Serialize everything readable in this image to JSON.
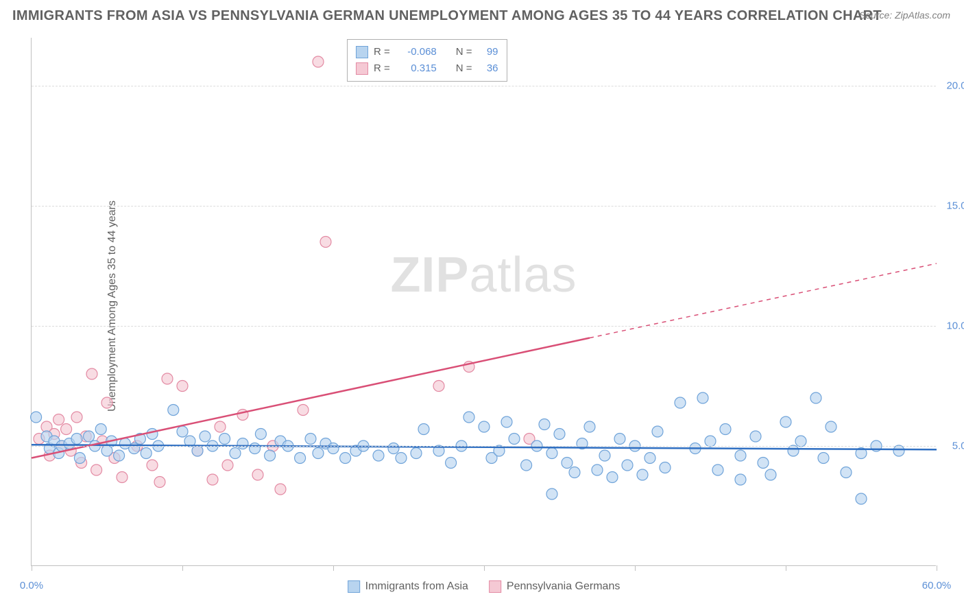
{
  "title": "IMMIGRANTS FROM ASIA VS PENNSYLVANIA GERMAN UNEMPLOYMENT AMONG AGES 35 TO 44 YEARS CORRELATION CHART",
  "source": "Source: ZipAtlas.com",
  "y_axis_title": "Unemployment Among Ages 35 to 44 years",
  "watermark_bold": "ZIP",
  "watermark_rest": "atlas",
  "chart": {
    "type": "scatter",
    "xlim": [
      0,
      60
    ],
    "ylim": [
      0,
      22
    ],
    "x_ticks": [
      0,
      10,
      20,
      30,
      40,
      50,
      60
    ],
    "x_tick_labels_shown": {
      "0": "0.0%",
      "60": "60.0%"
    },
    "y_ticks": [
      5,
      10,
      15,
      20
    ],
    "y_tick_labels": [
      "5.0%",
      "10.0%",
      "15.0%",
      "20.0%"
    ],
    "background_color": "#ffffff",
    "grid_color": "#dcdcdc",
    "marker_radius": 8,
    "marker_stroke_width": 1.2,
    "line_width": 2.5,
    "series": [
      {
        "name": "Immigrants from Asia",
        "fill_color": "#b8d4ef",
        "stroke_color": "#6fa3d9",
        "line_color": "#2f6fc2",
        "R": "-0.068",
        "N": "99",
        "trend_solid": {
          "x1": 0,
          "y1": 5.05,
          "x2": 60,
          "y2": 4.85
        },
        "points": [
          [
            0.3,
            6.2
          ],
          [
            1.0,
            5.4
          ],
          [
            1.2,
            4.9
          ],
          [
            1.5,
            5.2
          ],
          [
            1.8,
            4.7
          ],
          [
            2.0,
            5.0
          ],
          [
            2.5,
            5.1
          ],
          [
            3.0,
            5.3
          ],
          [
            3.2,
            4.5
          ],
          [
            3.8,
            5.4
          ],
          [
            4.2,
            5.0
          ],
          [
            4.6,
            5.7
          ],
          [
            5.0,
            4.8
          ],
          [
            5.3,
            5.2
          ],
          [
            5.8,
            4.6
          ],
          [
            6.2,
            5.1
          ],
          [
            6.8,
            4.9
          ],
          [
            7.2,
            5.3
          ],
          [
            7.6,
            4.7
          ],
          [
            8.0,
            5.5
          ],
          [
            8.4,
            5.0
          ],
          [
            9.4,
            6.5
          ],
          [
            10.0,
            5.6
          ],
          [
            10.5,
            5.2
          ],
          [
            11.0,
            4.8
          ],
          [
            11.5,
            5.4
          ],
          [
            12.0,
            5.0
          ],
          [
            12.8,
            5.3
          ],
          [
            13.5,
            4.7
          ],
          [
            14.0,
            5.1
          ],
          [
            14.8,
            4.9
          ],
          [
            15.2,
            5.5
          ],
          [
            15.8,
            4.6
          ],
          [
            16.5,
            5.2
          ],
          [
            17.0,
            5.0
          ],
          [
            17.8,
            4.5
          ],
          [
            18.5,
            5.3
          ],
          [
            19.0,
            4.7
          ],
          [
            19.5,
            5.1
          ],
          [
            20.0,
            4.9
          ],
          [
            20.8,
            4.5
          ],
          [
            21.5,
            4.8
          ],
          [
            22.0,
            5.0
          ],
          [
            23.0,
            4.6
          ],
          [
            24.0,
            4.9
          ],
          [
            24.5,
            4.5
          ],
          [
            25.5,
            4.7
          ],
          [
            26.0,
            5.7
          ],
          [
            27.0,
            4.8
          ],
          [
            27.8,
            4.3
          ],
          [
            28.5,
            5.0
          ],
          [
            29.0,
            6.2
          ],
          [
            30.0,
            5.8
          ],
          [
            30.5,
            4.5
          ],
          [
            31.0,
            4.8
          ],
          [
            31.5,
            6.0
          ],
          [
            32.0,
            5.3
          ],
          [
            32.8,
            4.2
          ],
          [
            33.5,
            5.0
          ],
          [
            34.0,
            5.9
          ],
          [
            34.5,
            4.7
          ],
          [
            34.5,
            3.0
          ],
          [
            35.0,
            5.5
          ],
          [
            35.5,
            4.3
          ],
          [
            36.0,
            3.9
          ],
          [
            36.5,
            5.1
          ],
          [
            37.0,
            5.8
          ],
          [
            37.5,
            4.0
          ],
          [
            38.0,
            4.6
          ],
          [
            38.5,
            3.7
          ],
          [
            39.0,
            5.3
          ],
          [
            39.5,
            4.2
          ],
          [
            40.0,
            5.0
          ],
          [
            40.5,
            3.8
          ],
          [
            41.0,
            4.5
          ],
          [
            41.5,
            5.6
          ],
          [
            42.0,
            4.1
          ],
          [
            43.0,
            6.8
          ],
          [
            44.0,
            4.9
          ],
          [
            44.5,
            7.0
          ],
          [
            45.0,
            5.2
          ],
          [
            45.5,
            4.0
          ],
          [
            46.0,
            5.7
          ],
          [
            47.0,
            4.6
          ],
          [
            47.0,
            3.6
          ],
          [
            48.0,
            5.4
          ],
          [
            48.5,
            4.3
          ],
          [
            49.0,
            3.8
          ],
          [
            50.0,
            6.0
          ],
          [
            50.5,
            4.8
          ],
          [
            51.0,
            5.2
          ],
          [
            52.0,
            7.0
          ],
          [
            52.5,
            4.5
          ],
          [
            53.0,
            5.8
          ],
          [
            54.0,
            3.9
          ],
          [
            55.0,
            4.7
          ],
          [
            55.0,
            2.8
          ],
          [
            56.0,
            5.0
          ],
          [
            57.5,
            4.8
          ]
        ]
      },
      {
        "name": "Pennsylvania Germans",
        "fill_color": "#f5c9d4",
        "stroke_color": "#e38aa3",
        "line_color": "#d94f76",
        "R": "0.315",
        "N": "36",
        "trend_solid": {
          "x1": 0,
          "y1": 4.5,
          "x2": 37,
          "y2": 9.5
        },
        "trend_dashed": {
          "x1": 37,
          "y1": 9.5,
          "x2": 60,
          "y2": 12.6
        },
        "points": [
          [
            0.5,
            5.3
          ],
          [
            1.0,
            5.8
          ],
          [
            1.2,
            4.6
          ],
          [
            1.5,
            5.5
          ],
          [
            1.8,
            6.1
          ],
          [
            2.0,
            5.0
          ],
          [
            2.3,
            5.7
          ],
          [
            2.6,
            4.8
          ],
          [
            3.0,
            6.2
          ],
          [
            3.3,
            4.3
          ],
          [
            3.6,
            5.4
          ],
          [
            4.0,
            8.0
          ],
          [
            4.3,
            4.0
          ],
          [
            4.7,
            5.2
          ],
          [
            5.0,
            6.8
          ],
          [
            5.5,
            4.5
          ],
          [
            6.0,
            3.7
          ],
          [
            7.0,
            5.0
          ],
          [
            8.0,
            4.2
          ],
          [
            8.5,
            3.5
          ],
          [
            9.0,
            7.8
          ],
          [
            10.0,
            7.5
          ],
          [
            11.0,
            4.8
          ],
          [
            12.0,
            3.6
          ],
          [
            12.5,
            5.8
          ],
          [
            13.0,
            4.2
          ],
          [
            14.0,
            6.3
          ],
          [
            15.0,
            3.8
          ],
          [
            16.0,
            5.0
          ],
          [
            16.5,
            3.2
          ],
          [
            18.0,
            6.5
          ],
          [
            19.0,
            21.0
          ],
          [
            19.5,
            13.5
          ],
          [
            27.0,
            7.5
          ],
          [
            29.0,
            8.3
          ],
          [
            33.0,
            5.3
          ]
        ]
      }
    ]
  },
  "stats_legend": {
    "r_label": "R =",
    "n_label": "N ="
  },
  "bottom_legend": [
    {
      "label": "Immigrants from Asia",
      "fill": "#b8d4ef",
      "stroke": "#6fa3d9"
    },
    {
      "label": "Pennsylvania Germans",
      "fill": "#f5c9d4",
      "stroke": "#e38aa3"
    }
  ]
}
